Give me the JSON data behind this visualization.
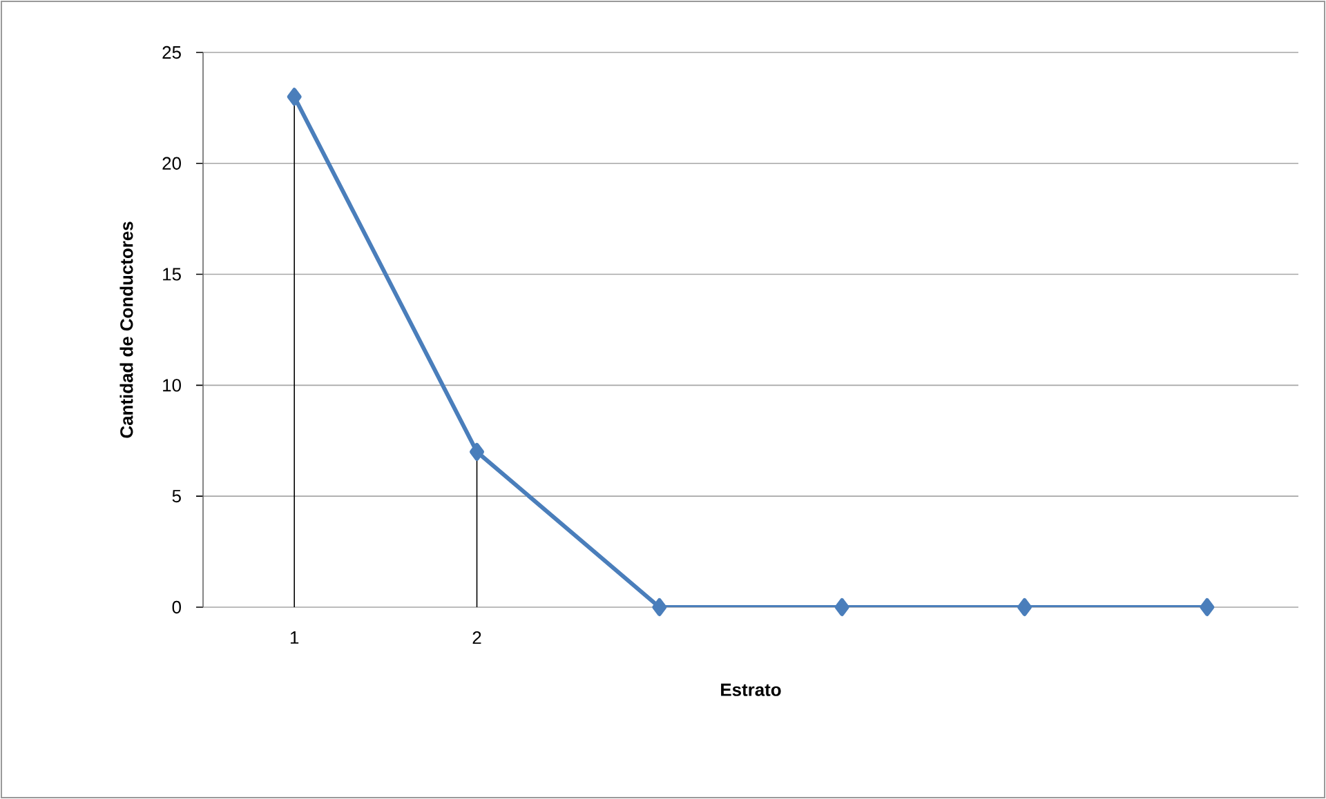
{
  "chart_data": {
    "type": "line",
    "xlabel": "Estrato",
    "ylabel": "Cantidad de Conductores",
    "categories": [
      "1",
      "2",
      null,
      null,
      null,
      null
    ],
    "series": [
      {
        "color": "#4a7ebb",
        "values": [
          23,
          7,
          0,
          0,
          0,
          0
        ],
        "errors": [
          [
            0,
            23
          ],
          [
            0,
            7
          ],
          null,
          null,
          null,
          null
        ]
      }
    ],
    "ylim": [
      0,
      25
    ],
    "yticks": [
      0,
      5,
      10,
      15,
      20,
      25
    ],
    "grid": "y",
    "legend": false,
    "marker": "diamond",
    "line_style": "solid"
  }
}
